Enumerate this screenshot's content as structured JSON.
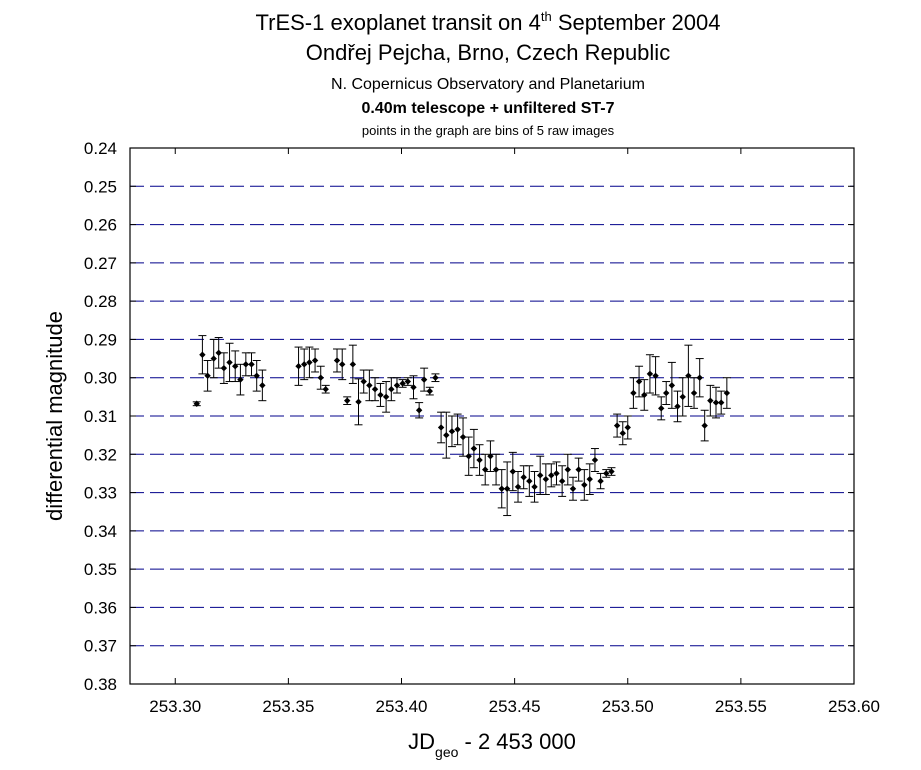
{
  "chart_data": {
    "type": "scatter",
    "title": {
      "main_before_sup": "TrES-1 exoplanet transit on 4",
      "main_sup": "th",
      "main_after_sup": " September 2004",
      "line2": "Ondřej Pejcha, Brno, Czech Republic",
      "line3": "N. Copernicus Observatory and Planetarium",
      "line4": "0.40m telescope + unfiltered ST-7",
      "line5": "points in the graph are bins of 5 raw images"
    },
    "xlabel": {
      "main": "JD",
      "sub": "geo",
      "rest": " - 2 453 000"
    },
    "ylabel": "differential magnitude",
    "xlim": [
      253.28,
      253.6
    ],
    "ylim": [
      0.24,
      0.38
    ],
    "y_inverted": true,
    "x_ticks": [
      "253.30",
      "253.35",
      "253.40",
      "253.45",
      "253.50",
      "253.55",
      "253.60"
    ],
    "y_ticks": [
      "0.24",
      "0.25",
      "0.26",
      "0.27",
      "0.28",
      "0.29",
      "0.30",
      "0.31",
      "0.32",
      "0.33",
      "0.34",
      "0.35",
      "0.36",
      "0.37",
      "0.38"
    ],
    "grid": "horizontal dashed",
    "grid_color": "#00008b",
    "marker_color": "#000000",
    "series": [
      {
        "points": [
          {
            "x": 253.3095,
            "y": 0.3068,
            "err": 0.0005
          },
          {
            "x": 253.312,
            "y": 0.294,
            "err": 0.005
          },
          {
            "x": 253.3143,
            "y": 0.2995,
            "err": 0.004
          },
          {
            "x": 253.317,
            "y": 0.295,
            "err": 0.005
          },
          {
            "x": 253.3192,
            "y": 0.2935,
            "err": 0.004
          },
          {
            "x": 253.3215,
            "y": 0.2975,
            "err": 0.004
          },
          {
            "x": 253.324,
            "y": 0.296,
            "err": 0.005
          },
          {
            "x": 253.3265,
            "y": 0.297,
            "err": 0.004
          },
          {
            "x": 253.3288,
            "y": 0.3005,
            "err": 0.004
          },
          {
            "x": 253.3312,
            "y": 0.2965,
            "err": 0.003
          },
          {
            "x": 253.3337,
            "y": 0.2965,
            "err": 0.003
          },
          {
            "x": 253.336,
            "y": 0.2995,
            "err": 0.004
          },
          {
            "x": 253.3385,
            "y": 0.302,
            "err": 0.004
          },
          {
            "x": 253.3545,
            "y": 0.297,
            "err": 0.005
          },
          {
            "x": 253.357,
            "y": 0.2965,
            "err": 0.004
          },
          {
            "x": 253.3593,
            "y": 0.296,
            "err": 0.004
          },
          {
            "x": 253.3618,
            "y": 0.2955,
            "err": 0.003
          },
          {
            "x": 253.3643,
            "y": 0.3,
            "err": 0.003
          },
          {
            "x": 253.3665,
            "y": 0.303,
            "err": 0.001
          },
          {
            "x": 253.3715,
            "y": 0.2955,
            "err": 0.003
          },
          {
            "x": 253.3738,
            "y": 0.2965,
            "err": 0.004
          },
          {
            "x": 253.376,
            "y": 0.306,
            "err": 0.001
          },
          {
            "x": 253.3785,
            "y": 0.2965,
            "err": 0.005
          },
          {
            "x": 253.381,
            "y": 0.3063,
            "err": 0.006
          },
          {
            "x": 253.3833,
            "y": 0.301,
            "err": 0.003
          },
          {
            "x": 253.3858,
            "y": 0.302,
            "err": 0.004
          },
          {
            "x": 253.3883,
            "y": 0.303,
            "err": 0.003
          },
          {
            "x": 253.3907,
            "y": 0.3045,
            "err": 0.003
          },
          {
            "x": 253.3932,
            "y": 0.305,
            "err": 0.004
          },
          {
            "x": 253.3955,
            "y": 0.303,
            "err": 0.003
          },
          {
            "x": 253.398,
            "y": 0.302,
            "err": 0.002
          },
          {
            "x": 253.4005,
            "y": 0.3015,
            "err": 0.001
          },
          {
            "x": 253.4028,
            "y": 0.301,
            "err": 0.001
          },
          {
            "x": 253.4053,
            "y": 0.3025,
            "err": 0.003
          },
          {
            "x": 253.4078,
            "y": 0.3085,
            "err": 0.002
          },
          {
            "x": 253.41,
            "y": 0.3005,
            "err": 0.003
          },
          {
            "x": 253.4125,
            "y": 0.3035,
            "err": 0.001
          },
          {
            "x": 253.415,
            "y": 0.3,
            "err": 0.001
          },
          {
            "x": 253.4175,
            "y": 0.313,
            "err": 0.004
          },
          {
            "x": 253.4198,
            "y": 0.315,
            "err": 0.006
          },
          {
            "x": 253.4223,
            "y": 0.314,
            "err": 0.004
          },
          {
            "x": 253.4248,
            "y": 0.3135,
            "err": 0.004
          },
          {
            "x": 253.4272,
            "y": 0.3155,
            "err": 0.005
          },
          {
            "x": 253.4297,
            "y": 0.3205,
            "err": 0.005
          },
          {
            "x": 253.432,
            "y": 0.3185,
            "err": 0.005
          },
          {
            "x": 253.4345,
            "y": 0.3215,
            "err": 0.004
          },
          {
            "x": 253.437,
            "y": 0.324,
            "err": 0.004
          },
          {
            "x": 253.4393,
            "y": 0.3205,
            "err": 0.004
          },
          {
            "x": 253.4418,
            "y": 0.324,
            "err": 0.004
          },
          {
            "x": 253.4443,
            "y": 0.329,
            "err": 0.005
          },
          {
            "x": 253.4467,
            "y": 0.329,
            "err": 0.007
          },
          {
            "x": 253.4492,
            "y": 0.3245,
            "err": 0.005
          },
          {
            "x": 253.4515,
            "y": 0.3285,
            "err": 0.004
          },
          {
            "x": 253.454,
            "y": 0.326,
            "err": 0.003
          },
          {
            "x": 253.4565,
            "y": 0.327,
            "err": 0.004
          },
          {
            "x": 253.4588,
            "y": 0.3285,
            "err": 0.004
          },
          {
            "x": 253.4613,
            "y": 0.3255,
            "err": 0.005
          },
          {
            "x": 253.4638,
            "y": 0.3265,
            "err": 0.004
          },
          {
            "x": 253.4662,
            "y": 0.3255,
            "err": 0.003
          },
          {
            "x": 253.4685,
            "y": 0.325,
            "err": 0.003
          },
          {
            "x": 253.471,
            "y": 0.327,
            "err": 0.004
          },
          {
            "x": 253.4735,
            "y": 0.324,
            "err": 0.004
          },
          {
            "x": 253.4758,
            "y": 0.329,
            "err": 0.003
          },
          {
            "x": 253.4783,
            "y": 0.324,
            "err": 0.003
          },
          {
            "x": 253.4808,
            "y": 0.328,
            "err": 0.004
          },
          {
            "x": 253.4832,
            "y": 0.3265,
            "err": 0.004
          },
          {
            "x": 253.4855,
            "y": 0.3215,
            "err": 0.003
          },
          {
            "x": 253.488,
            "y": 0.327,
            "err": 0.002
          },
          {
            "x": 253.4905,
            "y": 0.325,
            "err": 0.001
          },
          {
            "x": 253.4928,
            "y": 0.3245,
            "err": 0.001
          },
          {
            "x": 253.4953,
            "y": 0.3125,
            "err": 0.003
          },
          {
            "x": 253.4978,
            "y": 0.3145,
            "err": 0.003
          },
          {
            "x": 253.5,
            "y": 0.313,
            "err": 0.003
          },
          {
            "x": 253.5025,
            "y": 0.304,
            "err": 0.004
          },
          {
            "x": 253.505,
            "y": 0.301,
            "err": 0.004
          },
          {
            "x": 253.5073,
            "y": 0.3045,
            "err": 0.004
          },
          {
            "x": 253.5098,
            "y": 0.299,
            "err": 0.005
          },
          {
            "x": 253.5123,
            "y": 0.2995,
            "err": 0.005
          },
          {
            "x": 253.5148,
            "y": 0.308,
            "err": 0.003
          },
          {
            "x": 253.517,
            "y": 0.304,
            "err": 0.003
          },
          {
            "x": 253.5195,
            "y": 0.302,
            "err": 0.006
          },
          {
            "x": 253.522,
            "y": 0.3075,
            "err": 0.004
          },
          {
            "x": 253.5243,
            "y": 0.305,
            "err": 0.005
          },
          {
            "x": 253.5268,
            "y": 0.2995,
            "err": 0.008
          },
          {
            "x": 253.5293,
            "y": 0.304,
            "err": 0.004
          },
          {
            "x": 253.5318,
            "y": 0.3,
            "err": 0.005
          },
          {
            "x": 253.534,
            "y": 0.3125,
            "err": 0.004
          },
          {
            "x": 253.5365,
            "y": 0.306,
            "err": 0.004
          },
          {
            "x": 253.539,
            "y": 0.3065,
            "err": 0.004
          },
          {
            "x": 253.5413,
            "y": 0.3065,
            "err": 0.003
          },
          {
            "x": 253.5438,
            "y": 0.304,
            "err": 0.004
          }
        ]
      }
    ]
  }
}
